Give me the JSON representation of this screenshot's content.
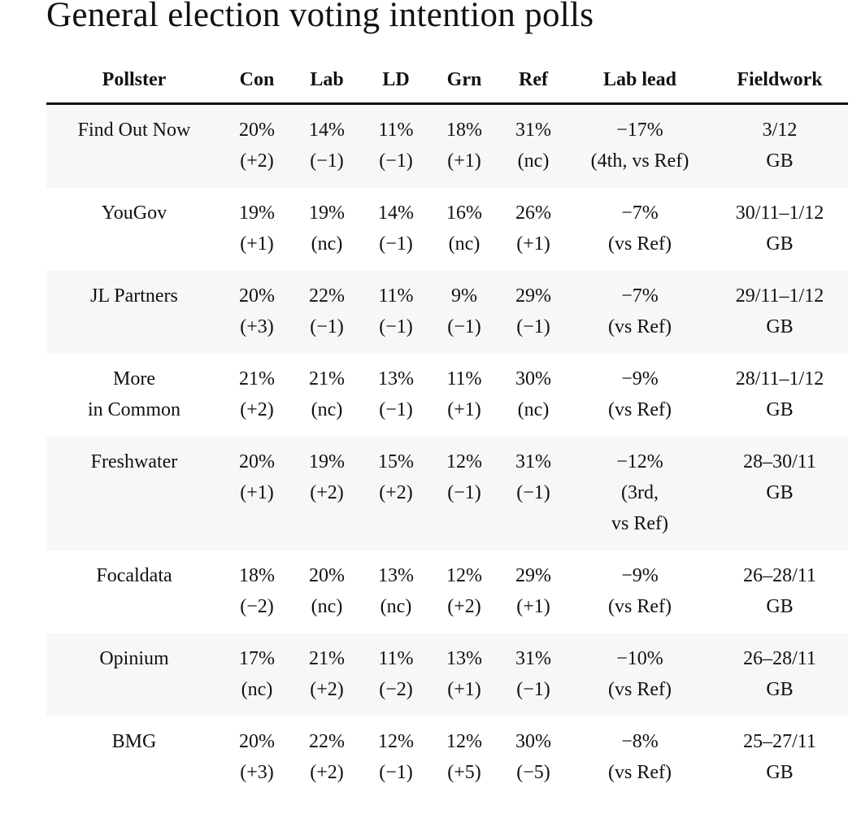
{
  "header": {
    "title": "General election voting intention polls"
  },
  "table": {
    "headers": [
      "Pollster",
      "Con",
      "Lab",
      "LD",
      "Grn",
      "Ref",
      "Lab lead",
      "Fieldwork"
    ],
    "rows": [
      [
        [
          "Find Out Now"
        ],
        [
          "20%",
          "(+2)"
        ],
        [
          "14%",
          "(−1)"
        ],
        [
          "11%",
          "(−1)"
        ],
        [
          "18%",
          "(+1)"
        ],
        [
          "31%",
          "(nc)"
        ],
        [
          "−17%",
          "(4th, vs Ref)"
        ],
        [
          "3/12",
          "GB"
        ]
      ],
      [
        [
          "YouGov"
        ],
        [
          "19%",
          "(+1)"
        ],
        [
          "19%",
          "(nc)"
        ],
        [
          "14%",
          "(−1)"
        ],
        [
          "16%",
          "(nc)"
        ],
        [
          "26%",
          "(+1)"
        ],
        [
          "−7%",
          "(vs Ref)"
        ],
        [
          "30/11–1/12",
          "GB"
        ]
      ],
      [
        [
          "JL Partners"
        ],
        [
          "20%",
          "(+3)"
        ],
        [
          "22%",
          "(−1)"
        ],
        [
          "11%",
          "(−1)"
        ],
        [
          "9%",
          "(−1)"
        ],
        [
          "29%",
          "(−1)"
        ],
        [
          "−7%",
          "(vs Ref)"
        ],
        [
          "29/11–1/12",
          "GB"
        ]
      ],
      [
        [
          "More",
          "in Common"
        ],
        [
          "21%",
          "(+2)"
        ],
        [
          "21%",
          "(nc)"
        ],
        [
          "13%",
          "(−1)"
        ],
        [
          "11%",
          "(+1)"
        ],
        [
          "30%",
          "(nc)"
        ],
        [
          "−9%",
          "(vs Ref)"
        ],
        [
          "28/11–1/12",
          "GB"
        ]
      ],
      [
        [
          "Freshwater"
        ],
        [
          "20%",
          "(+1)"
        ],
        [
          "19%",
          "(+2)"
        ],
        [
          "15%",
          "(+2)"
        ],
        [
          "12%",
          "(−1)"
        ],
        [
          "31%",
          "(−1)"
        ],
        [
          "−12%",
          "(3rd,",
          "vs Ref)"
        ],
        [
          "28–30/11",
          "GB"
        ]
      ],
      [
        [
          "Focaldata"
        ],
        [
          "18%",
          "(−2)"
        ],
        [
          "20%",
          "(nc)"
        ],
        [
          "13%",
          "(nc)"
        ],
        [
          "12%",
          "(+2)"
        ],
        [
          "29%",
          "(+1)"
        ],
        [
          "−9%",
          "(vs Ref)"
        ],
        [
          "26–28/11",
          "GB"
        ]
      ],
      [
        [
          "Opinium"
        ],
        [
          "17%",
          "(nc)"
        ],
        [
          "21%",
          "(+2)"
        ],
        [
          "11%",
          "(−2)"
        ],
        [
          "13%",
          "(+1)"
        ],
        [
          "31%",
          "(−1)"
        ],
        [
          "−10%",
          "(vs Ref)"
        ],
        [
          "26–28/11",
          "GB"
        ]
      ],
      [
        [
          "BMG"
        ],
        [
          "20%",
          "(+3)"
        ],
        [
          "22%",
          "(+2)"
        ],
        [
          "12%",
          "(−1)"
        ],
        [
          "12%",
          "(+5)"
        ],
        [
          "30%",
          "(−5)"
        ],
        [
          "−8%",
          "(vs Ref)"
        ],
        [
          "25–27/11",
          "GB"
        ]
      ]
    ]
  }
}
